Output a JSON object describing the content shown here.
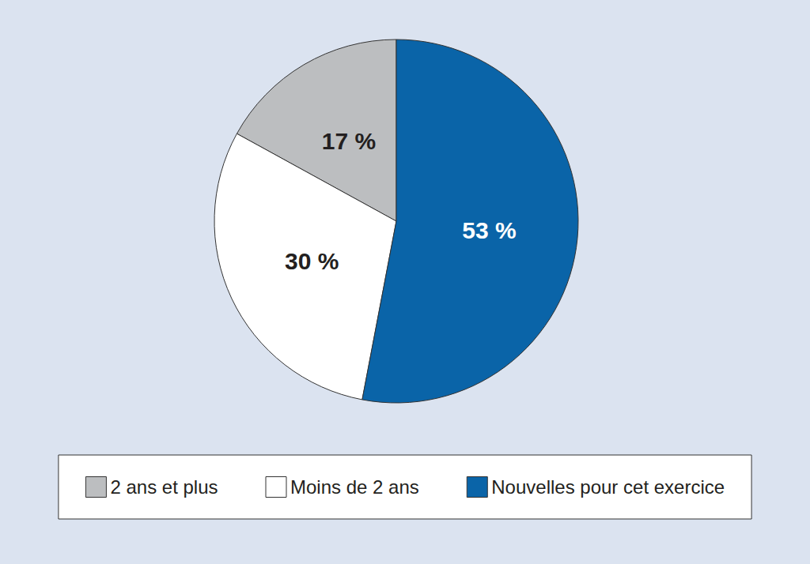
{
  "chart_data": {
    "type": "pie",
    "categories": [
      "2 ans et plus",
      "Moins de 2 ans",
      "Nouvelles pour cet exercice"
    ],
    "values": [
      17,
      30,
      53
    ],
    "value_labels": [
      "17 %",
      "30 %",
      "53 %"
    ],
    "colors": [
      "#bcbec0",
      "#ffffff",
      "#0a64a8"
    ],
    "data_labels": true,
    "legend": "bottom"
  }
}
